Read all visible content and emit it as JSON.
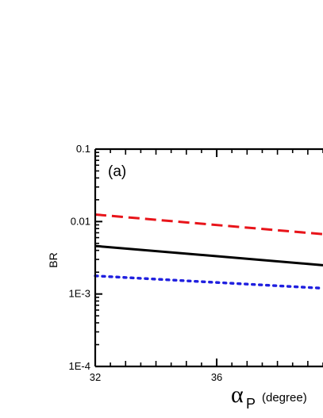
{
  "chart_data": {
    "type": "line",
    "panel_label": "(a)",
    "ylabel": "BR",
    "xlabel_symbol": "α",
    "xlabel_subscript": "P",
    "xlabel_unit": "(degree)",
    "xlim": [
      32,
      39.5
    ],
    "ylim": [
      0.0001,
      0.1
    ],
    "yscale": "log",
    "x_ticks": [
      "32",
      "36"
    ],
    "y_ticks": [
      "0.1",
      "0.01",
      "1E-3",
      "1E-4"
    ],
    "series": [
      {
        "style": "dashed",
        "color": "#e8141a",
        "x": [
          32,
          39.5
        ],
        "y": [
          0.0125,
          0.0067
        ]
      },
      {
        "style": "solid",
        "color": "#000000",
        "x": [
          32,
          39.5
        ],
        "y": [
          0.0046,
          0.0025
        ]
      },
      {
        "style": "dotted",
        "color": "#1f1fdf",
        "x": [
          32,
          39.5
        ],
        "y": [
          0.00178,
          0.0012
        ]
      }
    ]
  }
}
